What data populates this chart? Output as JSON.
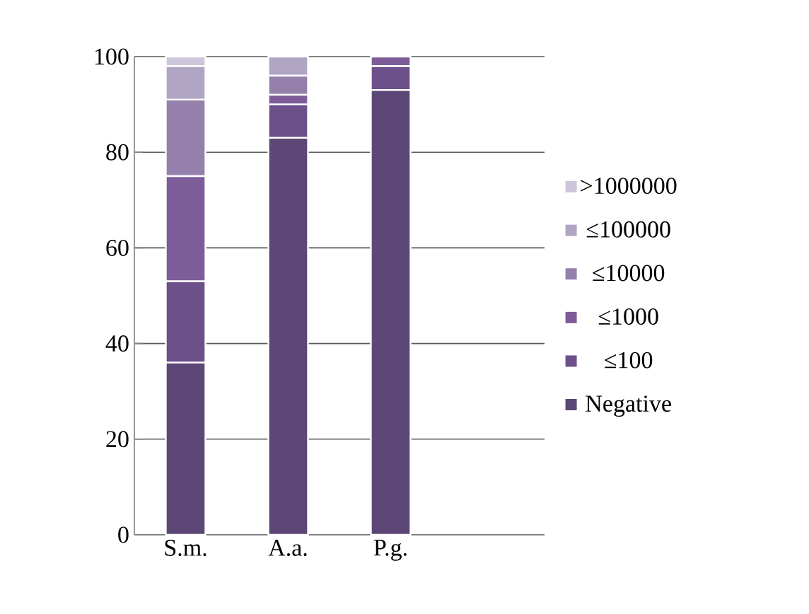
{
  "chart_data": {
    "type": "bar",
    "stacked": true,
    "categories": [
      "S.m.",
      "A.a.",
      "P.g.",
      null
    ],
    "series": [
      {
        "name": "Negative",
        "color": "#5c4776",
        "values": [
          36,
          83,
          93,
          null
        ]
      },
      {
        "name": "≤100",
        "color": "#6b5089",
        "values": [
          17,
          7,
          5,
          null
        ]
      },
      {
        "name": "≤1000",
        "color": "#7d5c99",
        "values": [
          22,
          2,
          2,
          null
        ]
      },
      {
        "name": "≤10000",
        "color": "#9580ab",
        "values": [
          16,
          4,
          0,
          null
        ]
      },
      {
        "name": "≤100000",
        "color": "#b1a5c4",
        "values": [
          7,
          4,
          0,
          null
        ]
      },
      {
        "name": ">1000000",
        "color": "#cdc6da",
        "values": [
          2,
          0,
          0,
          null
        ]
      }
    ],
    "ylim": [
      0,
      100
    ],
    "yticks": [
      0,
      20,
      40,
      60,
      80,
      100
    ],
    "grid": "y",
    "legend": "right"
  }
}
